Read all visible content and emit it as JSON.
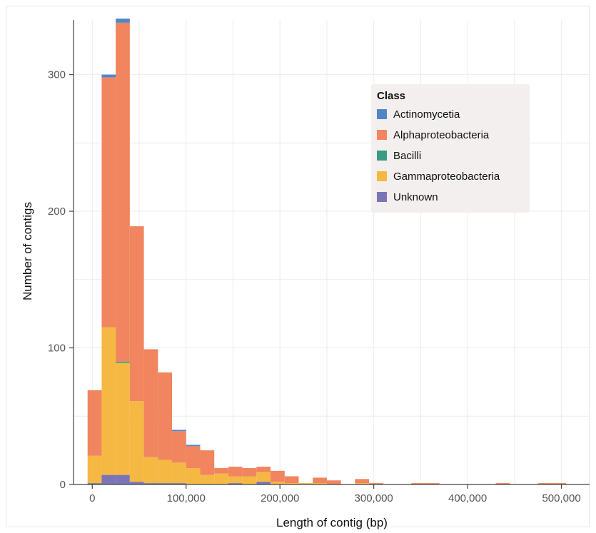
{
  "chart_data": {
    "type": "bar",
    "subtype": "stacked-histogram",
    "xlabel": "Length of contig (bp)",
    "ylabel": "Number of contigs",
    "xlim": [
      -20000,
      530000
    ],
    "ylim": [
      0,
      340
    ],
    "x_ticks": [
      0,
      100000,
      200000,
      300000,
      400000,
      500000
    ],
    "x_tick_labels": [
      "0",
      "100,000",
      "200,000",
      "300,000",
      "400,000",
      "500,000"
    ],
    "y_ticks": [
      0,
      100,
      200,
      300
    ],
    "y_tick_labels": [
      "0",
      "100",
      "200",
      "300"
    ],
    "grid": true,
    "legend": {
      "title": "Class",
      "placement": "top-right"
    },
    "bin_width": 15000,
    "bin_starts": [
      -5000,
      10000,
      25000,
      40000,
      55000,
      70000,
      85000,
      100000,
      115000,
      130000,
      145000,
      160000,
      175000,
      190000,
      205000,
      220000,
      235000,
      250000,
      265000,
      280000,
      295000,
      310000,
      325000,
      340000,
      355000,
      370000,
      385000,
      400000,
      415000,
      430000,
      445000,
      460000,
      475000,
      490000,
      505000
    ],
    "series": [
      {
        "name": "Unknown",
        "color": "#7b74b6",
        "values": [
          1,
          7,
          7,
          2,
          1,
          1,
          1,
          0,
          0,
          0,
          1,
          0,
          2,
          0,
          0,
          0,
          0,
          0,
          0,
          0,
          0,
          0,
          0,
          0,
          0,
          0,
          0,
          0,
          0,
          0,
          0,
          0,
          0,
          0,
          0
        ]
      },
      {
        "name": "Gammaproteobacteria",
        "color": "#f5b843",
        "values": [
          20,
          108,
          82,
          59,
          19,
          17,
          15,
          12,
          7,
          8,
          5,
          6,
          7,
          2,
          1,
          1,
          1,
          0,
          0,
          1,
          0,
          0,
          0,
          0,
          0,
          0,
          0,
          0,
          0,
          0,
          0,
          0,
          0,
          0,
          0
        ]
      },
      {
        "name": "Bacilli",
        "color": "#3a9a84",
        "values": [
          0,
          0,
          1,
          0,
          0,
          0,
          0,
          0,
          0,
          0,
          0,
          0,
          0,
          0,
          0,
          0,
          0,
          0,
          0,
          0,
          0,
          0,
          0,
          0,
          0,
          0,
          0,
          0,
          0,
          0,
          0,
          0,
          0,
          0,
          0
        ]
      },
      {
        "name": "Alphaproteobacteria",
        "color": "#f08560",
        "values": [
          48,
          183,
          248,
          128,
          79,
          64,
          23,
          16,
          18,
          4,
          7,
          6,
          4,
          8,
          5,
          0,
          4,
          3,
          0,
          3,
          1,
          0,
          0,
          1,
          1,
          0,
          0,
          0,
          0,
          1,
          0,
          0,
          1,
          1,
          0
        ]
      },
      {
        "name": "Actinomycetia",
        "color": "#4f87c6",
        "values": [
          0,
          2,
          3,
          0,
          0,
          0,
          1,
          1,
          0,
          0,
          0,
          0,
          0,
          0,
          0,
          0,
          0,
          0,
          0,
          0,
          0,
          0,
          0,
          0,
          0,
          0,
          0,
          0,
          0,
          0,
          0,
          0,
          0,
          0,
          0
        ]
      }
    ],
    "legend_order": [
      "Actinomycetia",
      "Alphaproteobacteria",
      "Bacilli",
      "Gammaproteobacteria",
      "Unknown"
    ]
  }
}
